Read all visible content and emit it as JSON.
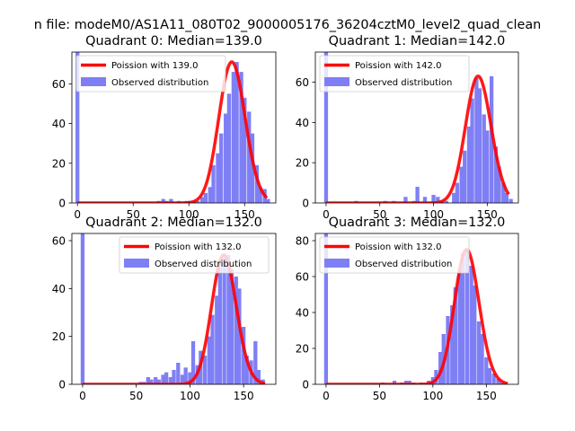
{
  "suptitle": "n file: modeM0/AS1A11_080T02_9000005176_36204cztM0_level2_quad_clean",
  "legend_observed": "Observed distribution",
  "colors": {
    "bars": "#7f7ff5",
    "poisson": "#ff0000",
    "frame": "#000000",
    "legend_bg": "#ffffff"
  },
  "chart_data": [
    {
      "type": "bar",
      "title": "Quadrant 0: Median=139.0",
      "median": 139.0,
      "poisson_label": "Poission with 139.0",
      "legend_position": "upper-left",
      "xlim": [
        -5,
        178
      ],
      "ylim": [
        0,
        76
      ],
      "xticks": [
        0,
        50,
        100,
        150
      ],
      "yticks": [
        0,
        20,
        40,
        60
      ],
      "bin_width": 3.5,
      "spike": {
        "x": 0,
        "value": 76
      },
      "bins": [
        [
          73,
          1
        ],
        [
          77,
          2
        ],
        [
          80,
          1
        ],
        [
          84,
          2
        ],
        [
          91,
          1
        ],
        [
          98,
          1
        ],
        [
          101,
          1
        ],
        [
          105,
          1
        ],
        [
          108,
          1
        ],
        [
          112,
          3
        ],
        [
          115,
          5
        ],
        [
          119,
          8
        ],
        [
          122,
          19
        ],
        [
          126,
          25
        ],
        [
          129,
          35
        ],
        [
          133,
          45
        ],
        [
          136,
          55
        ],
        [
          140,
          66
        ],
        [
          143,
          71
        ],
        [
          147,
          66
        ],
        [
          150,
          53
        ],
        [
          154,
          46
        ],
        [
          157,
          35
        ],
        [
          161,
          19
        ],
        [
          164,
          8
        ],
        [
          168,
          7
        ],
        [
          171,
          2
        ]
      ]
    },
    {
      "type": "bar",
      "title": "Quadrant 1: Median=142.0",
      "median": 142.0,
      "poisson_label": "Poission with 142.0",
      "legend_position": "upper-left",
      "xlim": [
        -10,
        179
      ],
      "ylim": [
        0,
        75
      ],
      "xticks": [
        0,
        50,
        100,
        150
      ],
      "yticks": [
        0,
        20,
        40,
        60
      ],
      "bin_width": 3.6,
      "spike": {
        "x": 0,
        "value": 75
      },
      "bins": [
        [
          28,
          1
        ],
        [
          55,
          1
        ],
        [
          63,
          1
        ],
        [
          74,
          3
        ],
        [
          82,
          1
        ],
        [
          85,
          8
        ],
        [
          92,
          3
        ],
        [
          100,
          4
        ],
        [
          104,
          3
        ],
        [
          108,
          1
        ],
        [
          112,
          1
        ],
        [
          119,
          5
        ],
        [
          122,
          10
        ],
        [
          126,
          18
        ],
        [
          129,
          26
        ],
        [
          133,
          38
        ],
        [
          136,
          52
        ],
        [
          140,
          62
        ],
        [
          143,
          57
        ],
        [
          147,
          44
        ],
        [
          150,
          36
        ],
        [
          154,
          63
        ],
        [
          158,
          28
        ],
        [
          161,
          18
        ],
        [
          165,
          10
        ],
        [
          168,
          5
        ],
        [
          172,
          2
        ]
      ]
    },
    {
      "type": "bar",
      "title": "Quadrant 2: Median=132.0",
      "median": 132.0,
      "poisson_label": "Poission with 132.0",
      "legend_position": "upper-right",
      "xlim": [
        -10,
        180
      ],
      "ylim": [
        0,
        63
      ],
      "xticks": [
        0,
        50,
        100,
        150
      ],
      "yticks": [
        0,
        20,
        40,
        60
      ],
      "bin_width": 3.6,
      "spike": {
        "x": 0,
        "value": 63
      },
      "bins": [
        [
          54,
          1
        ],
        [
          57,
          1
        ],
        [
          61,
          3
        ],
        [
          64,
          2
        ],
        [
          68,
          3
        ],
        [
          71,
          2
        ],
        [
          75,
          4
        ],
        [
          78,
          5
        ],
        [
          82,
          3
        ],
        [
          85,
          6
        ],
        [
          89,
          9
        ],
        [
          93,
          4
        ],
        [
          96,
          7
        ],
        [
          100,
          5
        ],
        [
          103,
          18
        ],
        [
          107,
          8
        ],
        [
          110,
          14
        ],
        [
          114,
          12
        ],
        [
          118,
          20
        ],
        [
          121,
          29
        ],
        [
          125,
          37
        ],
        [
          128,
          49
        ],
        [
          132,
          54
        ],
        [
          136,
          54
        ],
        [
          139,
          48
        ],
        [
          143,
          45
        ],
        [
          146,
          40
        ],
        [
          150,
          24
        ],
        [
          153,
          12
        ],
        [
          157,
          10
        ],
        [
          161,
          18
        ],
        [
          164,
          6
        ],
        [
          168,
          2
        ]
      ]
    },
    {
      "type": "bar",
      "title": "Quadrant 3: Median=132.0",
      "median": 132.0,
      "poisson_label": "Poission with 132.0",
      "legend_position": "upper-left",
      "xlim": [
        -10,
        180
      ],
      "ylim": [
        0,
        84
      ],
      "xticks": [
        0,
        50,
        100,
        150
      ],
      "yticks": [
        0,
        20,
        40,
        60,
        80
      ],
      "bin_width": 3.6,
      "spike": {
        "x": 0,
        "value": 84
      },
      "bins": [
        [
          53,
          1
        ],
        [
          64,
          2
        ],
        [
          71,
          1
        ],
        [
          75,
          2
        ],
        [
          78,
          2
        ],
        [
          82,
          1
        ],
        [
          89,
          1
        ],
        [
          96,
          2
        ],
        [
          100,
          4
        ],
        [
          103,
          8
        ],
        [
          107,
          18
        ],
        [
          110,
          28
        ],
        [
          114,
          38
        ],
        [
          118,
          44
        ],
        [
          121,
          54
        ],
        [
          125,
          63
        ],
        [
          128,
          73
        ],
        [
          132,
          75
        ],
        [
          136,
          66
        ],
        [
          139,
          55
        ],
        [
          143,
          35
        ],
        [
          146,
          28
        ],
        [
          150,
          15
        ],
        [
          153,
          9
        ],
        [
          157,
          6
        ],
        [
          161,
          3
        ],
        [
          164,
          1
        ]
      ]
    }
  ]
}
